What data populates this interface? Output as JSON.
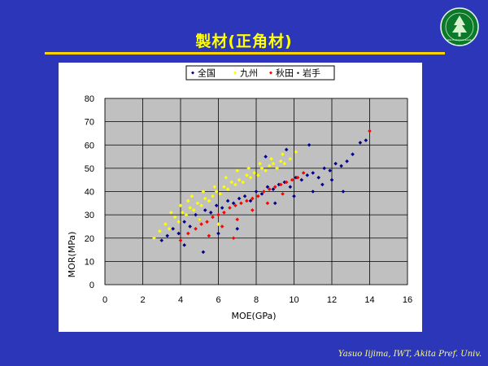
{
  "slide": {
    "title": "製材(正角材)",
    "footer": "Yasuo Iijima, IWT, Akita Pref. Univ.",
    "colors": {
      "background": "#2b36b8",
      "title": "#ffff00",
      "rule": "#ffd400"
    }
  },
  "logo": {
    "icon": "akita-university-seal-icon",
    "text": "Akita Prefectural University"
  },
  "chart_data": {
    "type": "scatter",
    "title": "",
    "xlabel": "MOE(GPa)",
    "ylabel": "MOR(MPa)",
    "xlim": [
      0,
      16
    ],
    "ylim": [
      0,
      80
    ],
    "xticks": [
      0,
      2,
      4,
      6,
      8,
      10,
      12,
      14,
      16
    ],
    "yticks": [
      0,
      10,
      20,
      30,
      40,
      50,
      60,
      70,
      80
    ],
    "grid": true,
    "legend": "top",
    "series": [
      {
        "name": "全国",
        "color": "#00008b",
        "marker": "diamond",
        "x": [
          3.0,
          3.3,
          3.6,
          3.9,
          4.2,
          4.5,
          4.8,
          5.0,
          5.3,
          5.6,
          5.9,
          6.2,
          6.5,
          6.8,
          7.1,
          7.4,
          7.7,
          8.0,
          8.3,
          8.6,
          8.9,
          9.2,
          9.5,
          9.8,
          10.1,
          10.4,
          10.7,
          11.0,
          11.3,
          11.6,
          11.9,
          12.2,
          12.5,
          12.8,
          13.1,
          13.5,
          9.0,
          10.0,
          11.0,
          7.0,
          6.0,
          12.0,
          8.5,
          9.6,
          10.8,
          5.2,
          4.2,
          13.8,
          11.5,
          12.6
        ],
        "y": [
          19,
          21,
          24,
          22,
          27,
          25,
          30,
          28,
          32,
          31,
          34,
          33,
          36,
          35,
          37,
          38,
          36,
          40,
          39,
          42,
          41,
          43,
          44,
          42,
          46,
          45,
          47,
          48,
          46,
          50,
          49,
          52,
          51,
          53,
          56,
          61,
          35,
          38,
          40,
          24,
          22,
          45,
          55,
          58,
          60,
          14,
          17,
          62,
          43,
          40
        ]
      },
      {
        "name": "九州",
        "color": "#ffff00",
        "marker": "diamond",
        "x": [
          2.6,
          2.9,
          3.2,
          3.4,
          3.7,
          3.9,
          4.1,
          4.3,
          4.5,
          4.7,
          4.9,
          5.1,
          5.3,
          5.5,
          5.7,
          5.9,
          6.1,
          6.3,
          6.5,
          6.7,
          6.9,
          7.1,
          7.3,
          7.5,
          7.7,
          7.9,
          8.1,
          8.3,
          8.5,
          8.7,
          8.9,
          9.1,
          9.3,
          9.5,
          9.8,
          10.1,
          3.5,
          4.0,
          4.6,
          5.2,
          5.8,
          6.4,
          7.0,
          7.6,
          8.2,
          8.8,
          9.4,
          6.0,
          5.0,
          4.4
        ],
        "y": [
          20,
          23,
          26,
          24,
          29,
          27,
          31,
          30,
          33,
          32,
          35,
          34,
          37,
          36,
          38,
          40,
          39,
          42,
          41,
          44,
          43,
          45,
          44,
          47,
          46,
          48,
          47,
          50,
          49,
          51,
          52,
          50,
          53,
          52,
          54,
          57,
          31,
          34,
          38,
          40,
          42,
          46,
          49,
          50,
          52,
          54,
          56,
          26,
          28,
          36
        ]
      },
      {
        "name": "秋田・岩手",
        "color": "#ff0000",
        "marker": "diamond",
        "x": [
          4.0,
          4.4,
          4.8,
          5.1,
          5.4,
          5.7,
          6.0,
          6.3,
          6.6,
          6.9,
          7.2,
          7.5,
          7.8,
          8.1,
          8.4,
          8.7,
          9.0,
          9.3,
          9.6,
          9.9,
          10.2,
          10.5,
          5.5,
          6.2,
          7.0,
          7.8,
          8.6,
          9.4,
          14.0,
          6.8
        ],
        "y": [
          19,
          22,
          24,
          26,
          27,
          29,
          30,
          31,
          33,
          34,
          35,
          36,
          37,
          38,
          40,
          41,
          42,
          43,
          44,
          45,
          46,
          48,
          21,
          25,
          28,
          32,
          35,
          39,
          66,
          20
        ]
      }
    ]
  }
}
